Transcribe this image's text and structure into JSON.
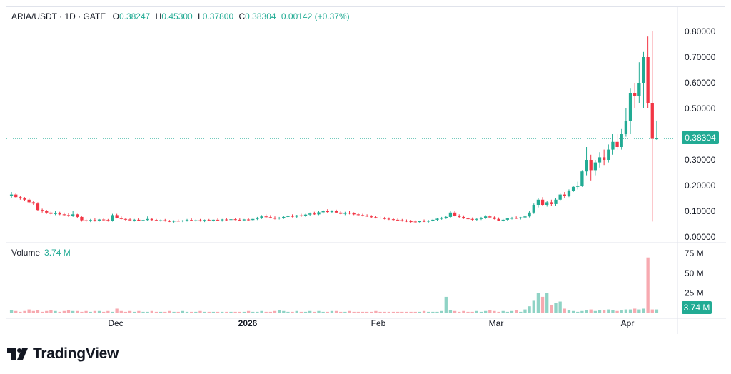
{
  "header": {
    "symbol": "ARIA/USDT · 1D · GATE",
    "o_label": "O",
    "o_value": "0.38247",
    "h_label": "H",
    "h_value": "0.45300",
    "l_label": "L",
    "l_value": "0.37800",
    "c_label": "C",
    "c_value": "0.38304",
    "change": "0.00142 (+0.37%)"
  },
  "volume_legend": {
    "label": "Volume",
    "value": "3.74 M"
  },
  "price_tag": "0.38304",
  "volume_tag": "3.74 M",
  "brand": "TradingView",
  "colors": {
    "up": "#22ab94",
    "down": "#f23645",
    "up_vol": "#8fd3c5",
    "down_vol": "#f7a9b0"
  },
  "chart_data": {
    "type": "candlestick",
    "price_axis": {
      "ticks": [
        "0.80000",
        "0.70000",
        "0.60000",
        "0.50000",
        "0.40000",
        "0.30000",
        "0.20000",
        "0.10000",
        "0.00000"
      ],
      "ylim": [
        0,
        0.8
      ]
    },
    "volume_axis": {
      "ticks": [
        "75 M",
        "50 M",
        "25 M"
      ],
      "ylim": [
        0,
        75
      ]
    },
    "x_labels": [
      "Dec",
      "2026",
      "Feb",
      "Mar",
      "Apr"
    ],
    "last_price": 0.38304,
    "ohlc": [
      [
        0.16,
        0.175,
        0.15,
        0.165
      ],
      [
        0.165,
        0.17,
        0.15,
        0.155
      ],
      [
        0.155,
        0.16,
        0.145,
        0.15
      ],
      [
        0.15,
        0.155,
        0.14,
        0.145
      ],
      [
        0.145,
        0.15,
        0.13,
        0.135
      ],
      [
        0.135,
        0.14,
        0.125,
        0.13
      ],
      [
        0.13,
        0.135,
        0.1,
        0.105
      ],
      [
        0.105,
        0.11,
        0.095,
        0.1
      ],
      [
        0.1,
        0.105,
        0.09,
        0.095
      ],
      [
        0.095,
        0.1,
        0.085,
        0.09
      ],
      [
        0.09,
        0.1,
        0.085,
        0.092
      ],
      [
        0.092,
        0.098,
        0.085,
        0.088
      ],
      [
        0.088,
        0.095,
        0.082,
        0.085
      ],
      [
        0.085,
        0.092,
        0.078,
        0.082
      ],
      [
        0.082,
        0.1,
        0.078,
        0.088
      ],
      [
        0.088,
        0.09,
        0.075,
        0.078
      ],
      [
        0.078,
        0.08,
        0.06,
        0.065
      ],
      [
        0.065,
        0.07,
        0.058,
        0.062
      ],
      [
        0.062,
        0.07,
        0.058,
        0.066
      ],
      [
        0.066,
        0.072,
        0.06,
        0.064
      ],
      [
        0.064,
        0.07,
        0.06,
        0.068
      ],
      [
        0.068,
        0.075,
        0.063,
        0.066
      ],
      [
        0.066,
        0.07,
        0.06,
        0.063
      ],
      [
        0.063,
        0.09,
        0.06,
        0.085
      ],
      [
        0.085,
        0.09,
        0.072,
        0.075
      ],
      [
        0.075,
        0.08,
        0.068,
        0.07
      ],
      [
        0.07,
        0.075,
        0.064,
        0.068
      ],
      [
        0.068,
        0.072,
        0.062,
        0.065
      ],
      [
        0.065,
        0.07,
        0.06,
        0.067
      ],
      [
        0.067,
        0.072,
        0.062,
        0.064
      ],
      [
        0.064,
        0.07,
        0.06,
        0.066
      ],
      [
        0.066,
        0.08,
        0.062,
        0.07
      ],
      [
        0.07,
        0.075,
        0.063,
        0.066
      ],
      [
        0.066,
        0.07,
        0.062,
        0.064
      ],
      [
        0.064,
        0.068,
        0.06,
        0.065
      ],
      [
        0.065,
        0.07,
        0.06,
        0.062
      ],
      [
        0.062,
        0.066,
        0.058,
        0.06
      ],
      [
        0.06,
        0.065,
        0.056,
        0.063
      ],
      [
        0.063,
        0.068,
        0.06,
        0.061
      ],
      [
        0.061,
        0.066,
        0.058,
        0.064
      ],
      [
        0.064,
        0.07,
        0.06,
        0.066
      ],
      [
        0.066,
        0.072,
        0.062,
        0.063
      ],
      [
        0.063,
        0.068,
        0.06,
        0.065
      ],
      [
        0.065,
        0.07,
        0.06,
        0.062
      ],
      [
        0.062,
        0.068,
        0.058,
        0.066
      ],
      [
        0.066,
        0.07,
        0.062,
        0.064
      ],
      [
        0.064,
        0.068,
        0.06,
        0.067
      ],
      [
        0.067,
        0.072,
        0.063,
        0.065
      ],
      [
        0.065,
        0.07,
        0.06,
        0.068
      ],
      [
        0.068,
        0.074,
        0.064,
        0.066
      ],
      [
        0.066,
        0.07,
        0.062,
        0.069
      ],
      [
        0.069,
        0.074,
        0.065,
        0.067
      ],
      [
        0.067,
        0.072,
        0.062,
        0.065
      ],
      [
        0.065,
        0.07,
        0.061,
        0.068
      ],
      [
        0.068,
        0.073,
        0.064,
        0.066
      ],
      [
        0.066,
        0.071,
        0.062,
        0.07
      ],
      [
        0.07,
        0.078,
        0.066,
        0.075
      ],
      [
        0.075,
        0.085,
        0.07,
        0.08
      ],
      [
        0.08,
        0.088,
        0.075,
        0.077
      ],
      [
        0.077,
        0.085,
        0.072,
        0.074
      ],
      [
        0.074,
        0.08,
        0.068,
        0.072
      ],
      [
        0.072,
        0.078,
        0.068,
        0.075
      ],
      [
        0.075,
        0.082,
        0.07,
        0.078
      ],
      [
        0.078,
        0.085,
        0.074,
        0.082
      ],
      [
        0.082,
        0.088,
        0.076,
        0.079
      ],
      [
        0.079,
        0.086,
        0.075,
        0.084
      ],
      [
        0.084,
        0.09,
        0.078,
        0.081
      ],
      [
        0.081,
        0.09,
        0.078,
        0.087
      ],
      [
        0.087,
        0.095,
        0.082,
        0.091
      ],
      [
        0.091,
        0.098,
        0.086,
        0.088
      ],
      [
        0.088,
        0.1,
        0.085,
        0.096
      ],
      [
        0.096,
        0.105,
        0.09,
        0.1
      ],
      [
        0.1,
        0.108,
        0.092,
        0.097
      ],
      [
        0.097,
        0.104,
        0.093,
        0.101
      ],
      [
        0.101,
        0.106,
        0.094,
        0.095
      ],
      [
        0.095,
        0.1,
        0.088,
        0.09
      ],
      [
        0.09,
        0.098,
        0.085,
        0.094
      ],
      [
        0.094,
        0.1,
        0.088,
        0.092
      ],
      [
        0.092,
        0.096,
        0.085,
        0.088
      ],
      [
        0.088,
        0.092,
        0.082,
        0.085
      ],
      [
        0.085,
        0.09,
        0.08,
        0.083
      ],
      [
        0.083,
        0.088,
        0.078,
        0.08
      ],
      [
        0.08,
        0.085,
        0.074,
        0.077
      ],
      [
        0.077,
        0.082,
        0.072,
        0.075
      ],
      [
        0.075,
        0.08,
        0.07,
        0.073
      ],
      [
        0.073,
        0.078,
        0.068,
        0.071
      ],
      [
        0.071,
        0.076,
        0.066,
        0.069
      ],
      [
        0.069,
        0.074,
        0.064,
        0.067
      ],
      [
        0.067,
        0.072,
        0.062,
        0.065
      ],
      [
        0.065,
        0.07,
        0.06,
        0.063
      ],
      [
        0.063,
        0.068,
        0.058,
        0.061
      ],
      [
        0.061,
        0.066,
        0.056,
        0.06
      ],
      [
        0.06,
        0.065,
        0.055,
        0.058
      ],
      [
        0.058,
        0.064,
        0.054,
        0.062
      ],
      [
        0.062,
        0.068,
        0.058,
        0.06
      ],
      [
        0.06,
        0.066,
        0.056,
        0.063
      ],
      [
        0.063,
        0.07,
        0.06,
        0.067
      ],
      [
        0.067,
        0.074,
        0.063,
        0.071
      ],
      [
        0.071,
        0.078,
        0.067,
        0.074
      ],
      [
        0.074,
        0.082,
        0.07,
        0.078
      ],
      [
        0.078,
        0.1,
        0.074,
        0.095
      ],
      [
        0.095,
        0.1,
        0.08,
        0.082
      ],
      [
        0.082,
        0.088,
        0.074,
        0.078
      ],
      [
        0.078,
        0.084,
        0.07,
        0.072
      ],
      [
        0.072,
        0.078,
        0.066,
        0.07
      ],
      [
        0.07,
        0.076,
        0.064,
        0.068
      ],
      [
        0.068,
        0.074,
        0.063,
        0.07
      ],
      [
        0.07,
        0.078,
        0.066,
        0.075
      ],
      [
        0.075,
        0.085,
        0.07,
        0.08
      ],
      [
        0.08,
        0.085,
        0.072,
        0.076
      ],
      [
        0.076,
        0.08,
        0.068,
        0.07
      ],
      [
        0.07,
        0.076,
        0.062,
        0.064
      ],
      [
        0.064,
        0.07,
        0.06,
        0.067
      ],
      [
        0.067,
        0.075,
        0.063,
        0.072
      ],
      [
        0.072,
        0.078,
        0.068,
        0.074
      ],
      [
        0.074,
        0.08,
        0.07,
        0.073
      ],
      [
        0.073,
        0.078,
        0.068,
        0.076
      ],
      [
        0.076,
        0.085,
        0.072,
        0.08
      ],
      [
        0.08,
        0.1,
        0.076,
        0.095
      ],
      [
        0.095,
        0.13,
        0.09,
        0.125
      ],
      [
        0.125,
        0.15,
        0.115,
        0.145
      ],
      [
        0.145,
        0.155,
        0.12,
        0.125
      ],
      [
        0.125,
        0.14,
        0.118,
        0.135
      ],
      [
        0.135,
        0.145,
        0.12,
        0.128
      ],
      [
        0.128,
        0.15,
        0.122,
        0.145
      ],
      [
        0.145,
        0.17,
        0.14,
        0.165
      ],
      [
        0.165,
        0.175,
        0.15,
        0.16
      ],
      [
        0.16,
        0.185,
        0.155,
        0.18
      ],
      [
        0.18,
        0.2,
        0.175,
        0.195
      ],
      [
        0.195,
        0.215,
        0.185,
        0.2
      ],
      [
        0.2,
        0.26,
        0.195,
        0.255
      ],
      [
        0.255,
        0.35,
        0.24,
        0.3
      ],
      [
        0.3,
        0.32,
        0.22,
        0.26
      ],
      [
        0.26,
        0.3,
        0.24,
        0.29
      ],
      [
        0.29,
        0.33,
        0.27,
        0.31
      ],
      [
        0.31,
        0.34,
        0.28,
        0.3
      ],
      [
        0.3,
        0.36,
        0.29,
        0.34
      ],
      [
        0.34,
        0.4,
        0.32,
        0.37
      ],
      [
        0.37,
        0.4,
        0.34,
        0.35
      ],
      [
        0.35,
        0.42,
        0.34,
        0.4
      ],
      [
        0.4,
        0.5,
        0.39,
        0.45
      ],
      [
        0.45,
        0.58,
        0.4,
        0.56
      ],
      [
        0.56,
        0.6,
        0.5,
        0.55
      ],
      [
        0.55,
        0.68,
        0.52,
        0.6
      ],
      [
        0.6,
        0.72,
        0.5,
        0.7
      ],
      [
        0.7,
        0.78,
        0.5,
        0.52
      ],
      [
        0.52,
        0.8,
        0.06,
        0.382
      ],
      [
        0.38247,
        0.453,
        0.378,
        0.38304
      ]
    ],
    "volume_m": [
      3,
      2,
      1,
      2,
      4,
      2,
      3,
      1,
      2,
      3,
      2,
      1,
      2,
      3,
      2,
      2,
      1,
      2,
      1,
      2,
      2,
      1,
      2,
      1,
      5,
      2,
      1,
      2,
      1,
      2,
      1,
      1,
      2,
      1,
      1,
      1,
      2,
      1,
      1,
      2,
      1,
      1,
      1,
      2,
      1,
      1,
      1,
      1,
      1,
      1,
      1,
      1,
      1,
      1,
      2,
      1,
      1,
      2,
      1,
      1,
      2,
      3,
      2,
      1,
      1,
      2,
      1,
      1,
      2,
      1,
      2,
      1,
      1,
      2,
      2,
      1,
      1,
      2,
      1,
      1,
      1,
      1,
      1,
      2,
      1,
      1,
      1,
      1,
      1,
      1,
      1,
      1,
      1,
      1,
      2,
      1,
      1,
      1,
      2,
      20,
      3,
      2,
      1,
      2,
      1,
      1,
      2,
      1,
      2,
      3,
      2,
      1,
      2,
      1,
      2,
      3,
      1,
      4,
      8,
      15,
      25,
      20,
      25,
      10,
      12,
      14,
      5,
      3,
      2,
      1,
      2,
      3,
      4,
      2,
      3,
      3,
      4,
      3,
      2,
      3,
      4,
      4,
      5,
      4,
      5,
      70,
      4,
      4
    ]
  }
}
